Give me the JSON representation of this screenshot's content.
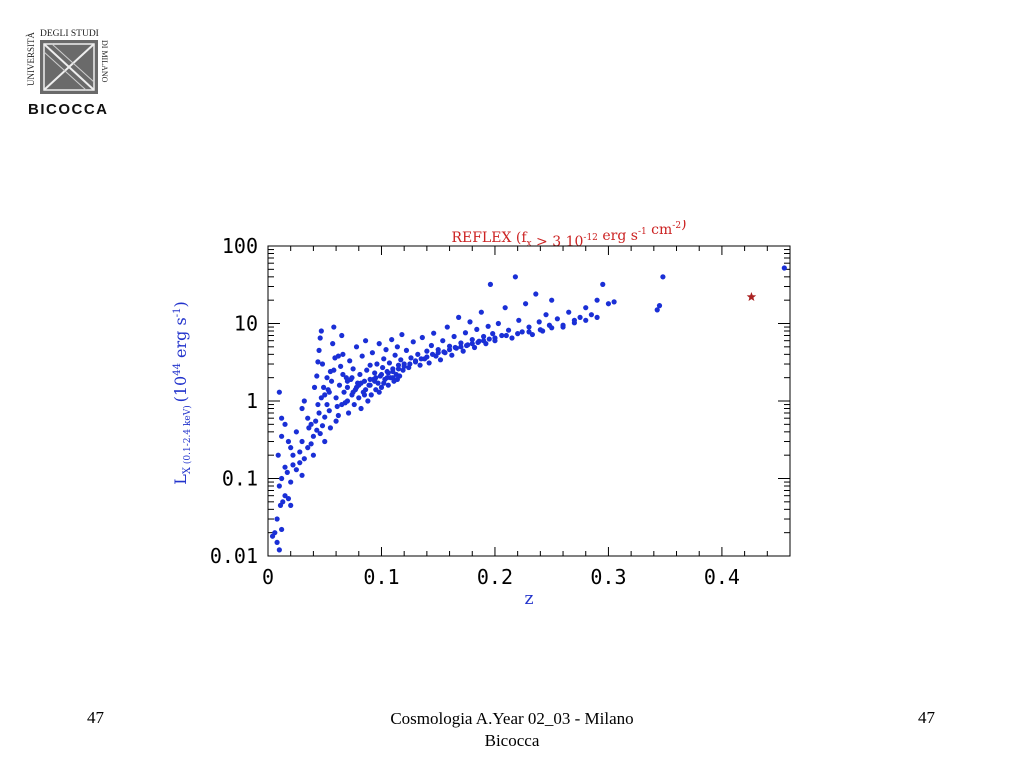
{
  "logo": {
    "text_vertical": "UNIVERSITÀ",
    "text_top": "DEGLI STUDI",
    "text_side": "DI MILANO",
    "text_bottom": "BICOCCA"
  },
  "footer": {
    "left": "47",
    "center_line1": "Cosmologia A.Year 02_03 - Milano",
    "center_line2": "Bicocca",
    "right": "47"
  },
  "colors": {
    "title": "#cc2222",
    "axis_label": "#2233cc",
    "points": "#1a2fd6",
    "star": "#aa2222",
    "axis": "#000000"
  },
  "chart_data": {
    "type": "scatter",
    "title": "REFLEX (f_x > 3 10^-12 erg s^-1 cm^-2)",
    "xlabel": "z",
    "ylabel": "L_X (0.1-2.4 keV) (10^44 erg s^-1)",
    "xlim": [
      0,
      0.46
    ],
    "ylim": [
      0.01,
      100
    ],
    "yscale": "log",
    "x_ticks": [
      "0",
      "0.1",
      "0.2",
      "0.3",
      "0.4"
    ],
    "x_tick_values": [
      0,
      0.1,
      0.2,
      0.3,
      0.4
    ],
    "y_ticks": [
      "0.01",
      "0.1",
      "1",
      "10",
      "100"
    ],
    "y_tick_values": [
      0.01,
      0.1,
      1,
      10,
      100
    ],
    "grid": false,
    "series": [
      {
        "marker": "circle",
        "points": [
          [
            0.004,
            0.018
          ],
          [
            0.006,
            0.02
          ],
          [
            0.008,
            0.015
          ],
          [
            0.01,
            0.012
          ],
          [
            0.012,
            0.022
          ],
          [
            0.008,
            0.03
          ],
          [
            0.011,
            0.045
          ],
          [
            0.013,
            0.05
          ],
          [
            0.015,
            0.06
          ],
          [
            0.018,
            0.055
          ],
          [
            0.02,
            0.045
          ],
          [
            0.01,
            0.08
          ],
          [
            0.012,
            0.1
          ],
          [
            0.015,
            0.14
          ],
          [
            0.017,
            0.12
          ],
          [
            0.02,
            0.09
          ],
          [
            0.022,
            0.15
          ],
          [
            0.025,
            0.13
          ],
          [
            0.028,
            0.16
          ],
          [
            0.03,
            0.11
          ],
          [
            0.009,
            0.2
          ],
          [
            0.012,
            0.35
          ],
          [
            0.015,
            0.5
          ],
          [
            0.018,
            0.3
          ],
          [
            0.01,
            1.3
          ],
          [
            0.012,
            0.6
          ],
          [
            0.02,
            0.25
          ],
          [
            0.022,
            0.2
          ],
          [
            0.025,
            0.4
          ],
          [
            0.028,
            0.22
          ],
          [
            0.03,
            0.3
          ],
          [
            0.032,
            0.18
          ],
          [
            0.035,
            0.25
          ],
          [
            0.038,
            0.28
          ],
          [
            0.04,
            0.2
          ],
          [
            0.03,
            0.8
          ],
          [
            0.032,
            1.0
          ],
          [
            0.035,
            0.6
          ],
          [
            0.036,
            0.45
          ],
          [
            0.038,
            0.5
          ],
          [
            0.04,
            0.35
          ],
          [
            0.042,
            0.55
          ],
          [
            0.043,
            0.42
          ],
          [
            0.045,
            0.7
          ],
          [
            0.046,
            0.38
          ],
          [
            0.048,
            0.48
          ],
          [
            0.05,
            0.62
          ],
          [
            0.041,
            1.5
          ],
          [
            0.043,
            2.1
          ],
          [
            0.044,
            3.2
          ],
          [
            0.045,
            4.5
          ],
          [
            0.046,
            6.5
          ],
          [
            0.047,
            8.0
          ],
          [
            0.048,
            3.0
          ],
          [
            0.05,
            1.2
          ],
          [
            0.052,
            0.9
          ],
          [
            0.053,
            1.4
          ],
          [
            0.054,
            0.75
          ],
          [
            0.055,
            2.4
          ],
          [
            0.056,
            1.8
          ],
          [
            0.057,
            5.5
          ],
          [
            0.058,
            9.0
          ],
          [
            0.059,
            3.6
          ],
          [
            0.06,
            1.1
          ],
          [
            0.061,
            0.85
          ],
          [
            0.062,
            0.65
          ],
          [
            0.063,
            1.6
          ],
          [
            0.064,
            2.8
          ],
          [
            0.065,
            7.0
          ],
          [
            0.066,
            4.0
          ],
          [
            0.067,
            1.3
          ],
          [
            0.068,
            0.95
          ],
          [
            0.069,
            2.0
          ],
          [
            0.07,
            1.5
          ],
          [
            0.071,
            0.7
          ],
          [
            0.072,
            3.3
          ],
          [
            0.073,
            1.9
          ],
          [
            0.074,
            1.2
          ],
          [
            0.075,
            2.6
          ],
          [
            0.076,
            0.9
          ],
          [
            0.077,
            1.4
          ],
          [
            0.078,
            5.0
          ],
          [
            0.079,
            1.7
          ],
          [
            0.08,
            1.1
          ],
          [
            0.081,
            2.2
          ],
          [
            0.082,
            0.8
          ],
          [
            0.083,
            3.8
          ],
          [
            0.084,
            1.3
          ],
          [
            0.085,
            1.8
          ],
          [
            0.086,
            6.0
          ],
          [
            0.087,
            2.5
          ],
          [
            0.088,
            1.0
          ],
          [
            0.089,
            1.6
          ],
          [
            0.09,
            2.9
          ],
          [
            0.091,
            1.2
          ],
          [
            0.092,
            4.2
          ],
          [
            0.093,
            1.9
          ],
          [
            0.094,
            2.3
          ],
          [
            0.095,
            1.4
          ],
          [
            0.096,
            3.0
          ],
          [
            0.097,
            1.7
          ],
          [
            0.098,
            5.5
          ],
          [
            0.099,
            2.1
          ],
          [
            0.1,
            1.5
          ],
          [
            0.101,
            2.7
          ],
          [
            0.102,
            3.5
          ],
          [
            0.103,
            1.9
          ],
          [
            0.104,
            4.6
          ],
          [
            0.105,
            2.4
          ],
          [
            0.106,
            1.6
          ],
          [
            0.107,
            3.1
          ],
          [
            0.108,
            2.0
          ],
          [
            0.109,
            6.2
          ],
          [
            0.11,
            2.6
          ],
          [
            0.111,
            1.8
          ],
          [
            0.112,
            3.9
          ],
          [
            0.113,
            2.2
          ],
          [
            0.114,
            5.0
          ],
          [
            0.115,
            2.9
          ],
          [
            0.116,
            2.1
          ],
          [
            0.117,
            3.4
          ],
          [
            0.118,
            7.2
          ],
          [
            0.119,
            2.5
          ],
          [
            0.12,
            3.0
          ],
          [
            0.122,
            4.5
          ],
          [
            0.124,
            2.7
          ],
          [
            0.126,
            3.6
          ],
          [
            0.128,
            5.8
          ],
          [
            0.13,
            3.2
          ],
          [
            0.132,
            4.0
          ],
          [
            0.134,
            2.9
          ],
          [
            0.136,
            6.6
          ],
          [
            0.138,
            3.5
          ],
          [
            0.14,
            4.4
          ],
          [
            0.142,
            3.1
          ],
          [
            0.144,
            5.2
          ],
          [
            0.146,
            7.5
          ],
          [
            0.148,
            3.8
          ],
          [
            0.15,
            4.6
          ],
          [
            0.152,
            3.4
          ],
          [
            0.154,
            6.0
          ],
          [
            0.156,
            4.2
          ],
          [
            0.158,
            9.0
          ],
          [
            0.16,
            5.1
          ],
          [
            0.162,
            3.9
          ],
          [
            0.164,
            6.8
          ],
          [
            0.166,
            4.8
          ],
          [
            0.168,
            12.0
          ],
          [
            0.17,
            5.6
          ],
          [
            0.172,
            4.4
          ],
          [
            0.174,
            7.6
          ],
          [
            0.176,
            5.3
          ],
          [
            0.178,
            10.5
          ],
          [
            0.18,
            6.2
          ],
          [
            0.182,
            4.9
          ],
          [
            0.184,
            8.4
          ],
          [
            0.186,
            5.9
          ],
          [
            0.188,
            14.0
          ],
          [
            0.19,
            6.8
          ],
          [
            0.192,
            5.5
          ],
          [
            0.194,
            9.2
          ],
          [
            0.196,
            32.0
          ],
          [
            0.198,
            7.4
          ],
          [
            0.2,
            6.0
          ],
          [
            0.203,
            10.0
          ],
          [
            0.206,
            7.0
          ],
          [
            0.209,
            16.0
          ],
          [
            0.212,
            8.2
          ],
          [
            0.215,
            6.5
          ],
          [
            0.218,
            40.0
          ],
          [
            0.221,
            11.0
          ],
          [
            0.224,
            7.8
          ],
          [
            0.227,
            18.0
          ],
          [
            0.23,
            9.0
          ],
          [
            0.233,
            7.2
          ],
          [
            0.236,
            24.0
          ],
          [
            0.239,
            10.5
          ],
          [
            0.242,
            8.0
          ],
          [
            0.245,
            13.0
          ],
          [
            0.248,
            9.5
          ],
          [
            0.25,
            20.0
          ],
          [
            0.255,
            11.5
          ],
          [
            0.26,
            9.0
          ],
          [
            0.265,
            14.0
          ],
          [
            0.27,
            11.0
          ],
          [
            0.275,
            12.0
          ],
          [
            0.28,
            16.0
          ],
          [
            0.285,
            13.0
          ],
          [
            0.29,
            20.0
          ],
          [
            0.295,
            32.0
          ],
          [
            0.3,
            18.0
          ],
          [
            0.305,
            19.0
          ],
          [
            0.343,
            15.0
          ],
          [
            0.345,
            17.0
          ],
          [
            0.348,
            40.0
          ],
          [
            0.455,
            52.0
          ],
          [
            0.05,
            0.3
          ],
          [
            0.055,
            0.45
          ],
          [
            0.06,
            0.55
          ],
          [
            0.065,
            0.9
          ],
          [
            0.07,
            1.0
          ],
          [
            0.075,
            1.3
          ],
          [
            0.08,
            1.6
          ],
          [
            0.085,
            1.2
          ],
          [
            0.09,
            1.9
          ],
          [
            0.095,
            2.0
          ],
          [
            0.1,
            2.2
          ],
          [
            0.105,
            2.0
          ],
          [
            0.11,
            2.4
          ],
          [
            0.115,
            2.6
          ],
          [
            0.12,
            2.8
          ],
          [
            0.125,
            3.0
          ],
          [
            0.13,
            3.3
          ],
          [
            0.135,
            3.5
          ],
          [
            0.14,
            3.7
          ],
          [
            0.145,
            4.0
          ],
          [
            0.15,
            4.2
          ],
          [
            0.155,
            4.3
          ],
          [
            0.16,
            4.6
          ],
          [
            0.165,
            4.9
          ],
          [
            0.17,
            5.0
          ],
          [
            0.175,
            5.2
          ],
          [
            0.18,
            5.5
          ],
          [
            0.185,
            5.7
          ],
          [
            0.19,
            6.0
          ],
          [
            0.195,
            6.3
          ],
          [
            0.2,
            6.5
          ],
          [
            0.21,
            7.0
          ],
          [
            0.22,
            7.4
          ],
          [
            0.23,
            7.8
          ],
          [
            0.24,
            8.3
          ],
          [
            0.25,
            8.8
          ],
          [
            0.26,
            9.5
          ],
          [
            0.27,
            10.2
          ],
          [
            0.28,
            11.0
          ],
          [
            0.29,
            12.0
          ],
          [
            0.044,
            0.9
          ],
          [
            0.047,
            1.1
          ],
          [
            0.049,
            1.5
          ],
          [
            0.052,
            2.0
          ],
          [
            0.054,
            1.3
          ],
          [
            0.058,
            2.5
          ],
          [
            0.062,
            3.8
          ],
          [
            0.066,
            2.2
          ],
          [
            0.07,
            1.8
          ],
          [
            0.074,
            2.0
          ],
          [
            0.078,
            1.5
          ],
          [
            0.082,
            1.7
          ],
          [
            0.086,
            1.4
          ],
          [
            0.09,
            1.6
          ],
          [
            0.094,
            1.8
          ],
          [
            0.098,
            1.3
          ],
          [
            0.102,
            1.7
          ],
          [
            0.106,
            2.3
          ],
          [
            0.11,
            2.0
          ],
          [
            0.114,
            1.9
          ]
        ]
      },
      {
        "marker": "star",
        "points": [
          [
            0.426,
            22.0
          ]
        ]
      }
    ]
  }
}
